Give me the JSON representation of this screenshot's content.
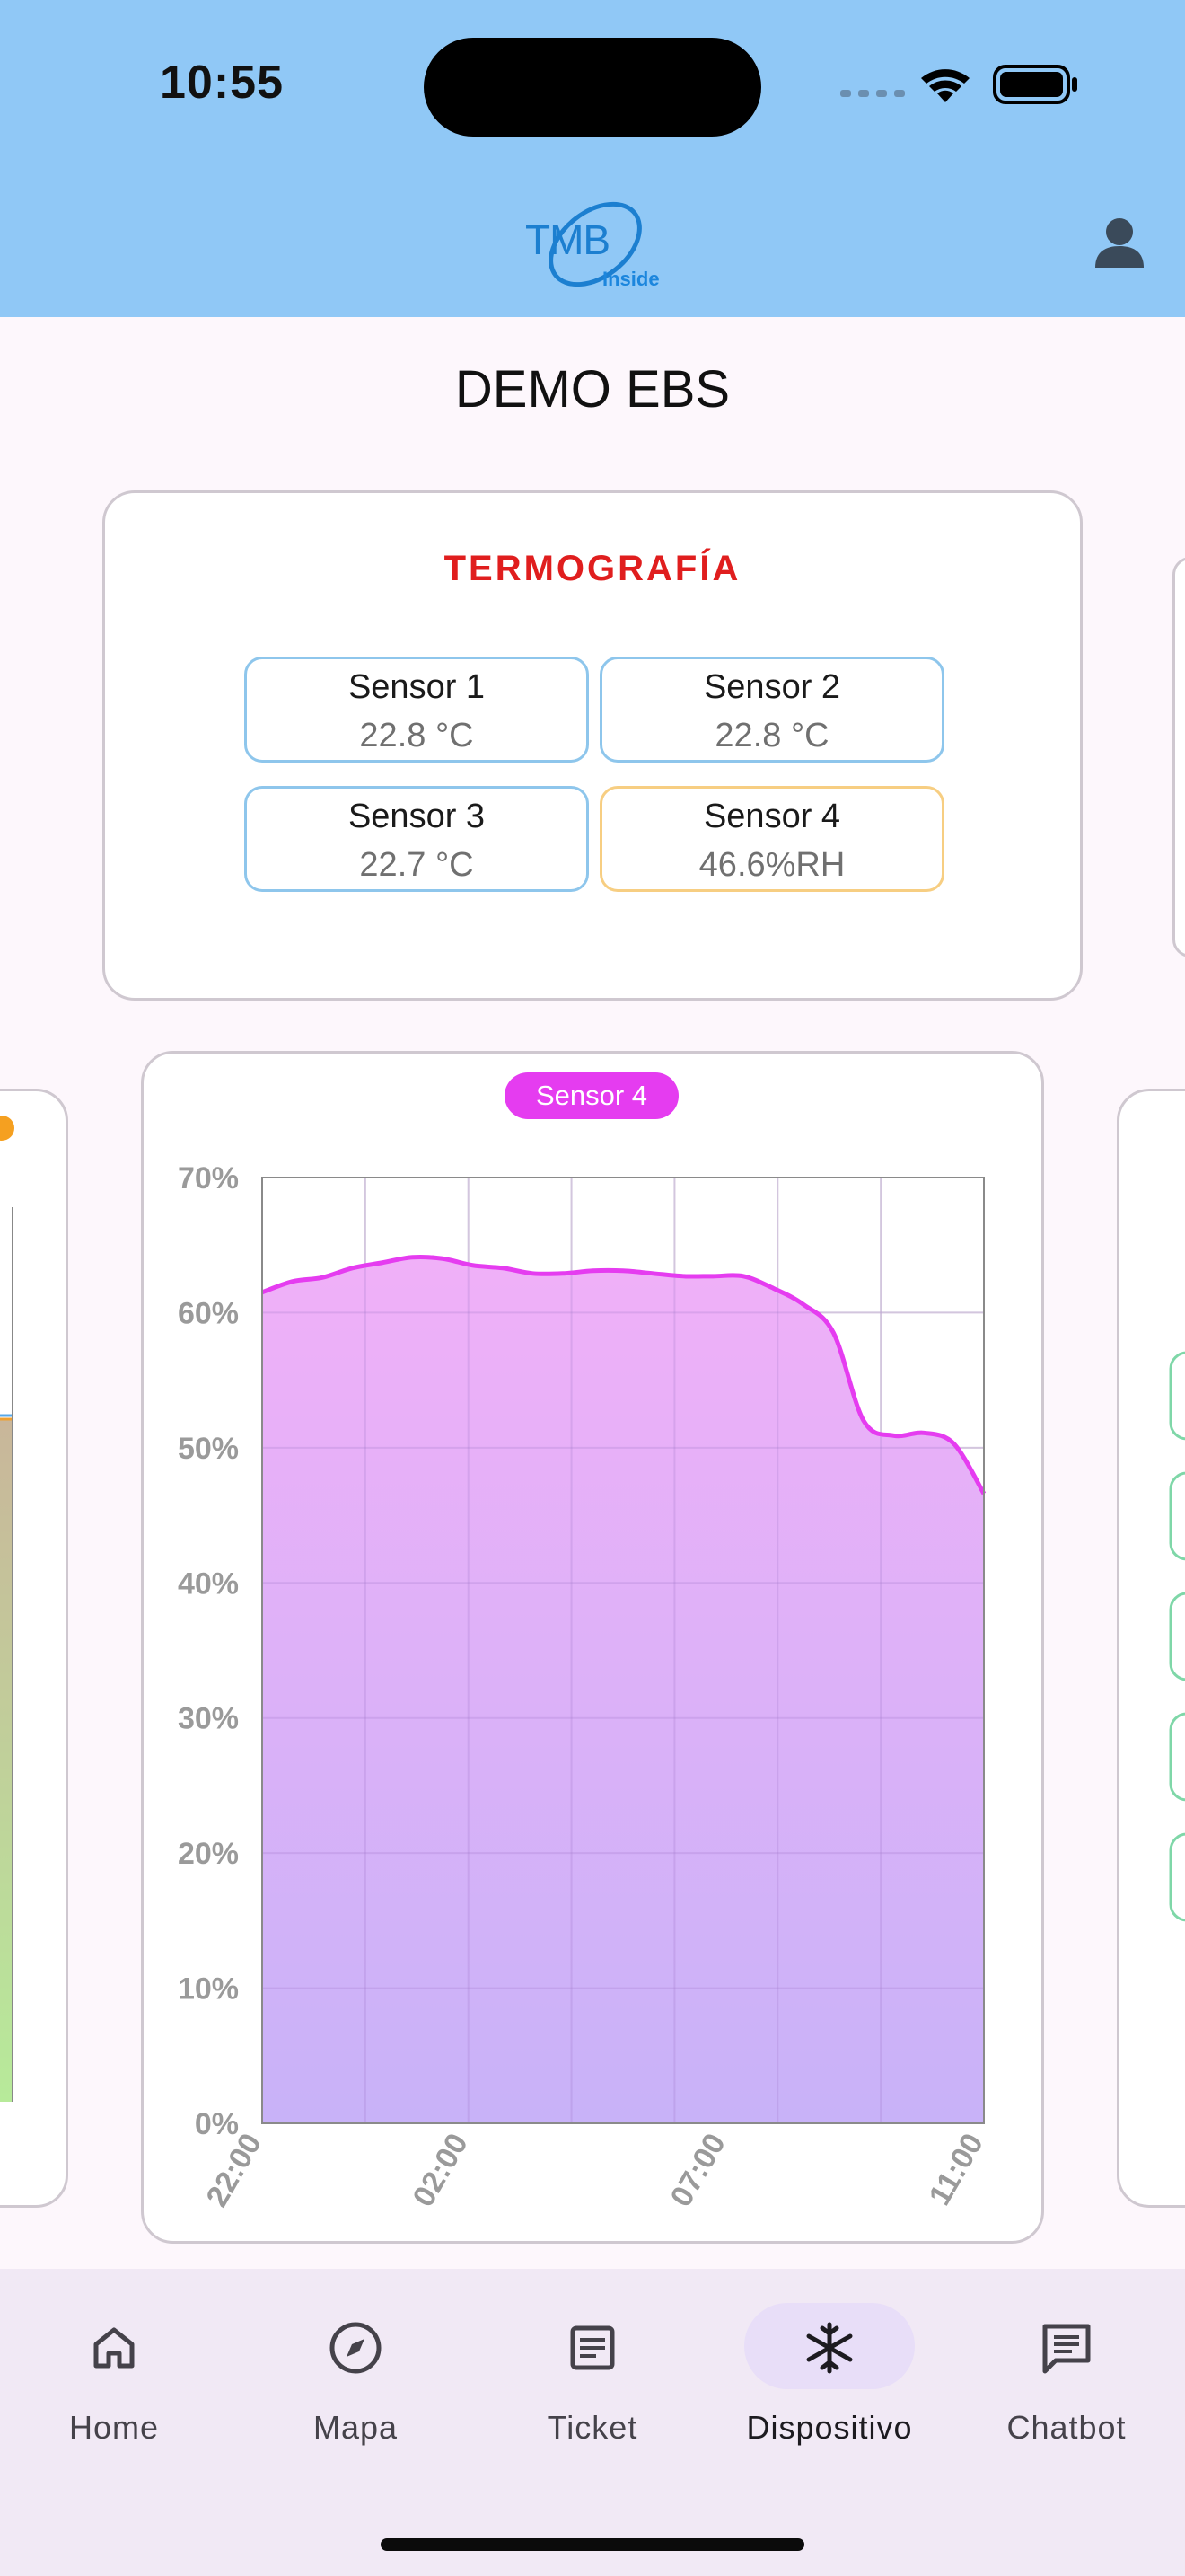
{
  "status_bar": {
    "time": "10:55"
  },
  "header": {
    "logo_text": "TMB",
    "logo_sub": "Inside"
  },
  "page_title": "DEMO EBS",
  "thermography": {
    "title": "TERMOGRAFÍA",
    "sensors": [
      {
        "name": "Sensor 1",
        "value": "22.8 °C"
      },
      {
        "name": "Sensor 2",
        "value": "22.8 °C"
      },
      {
        "name": "Sensor 3",
        "value": "22.7 °C"
      },
      {
        "name": "Sensor 4",
        "value": "46.6%RH"
      }
    ]
  },
  "colors": {
    "header": "#90c8f6",
    "series": "#e53cf0",
    "title_red": "#e01e1e"
  },
  "chart_data": {
    "type": "area",
    "legend": [
      "Sensor 4"
    ],
    "y_ticks": [
      "0%",
      "10%",
      "20%",
      "30%",
      "40%",
      "50%",
      "60%",
      "70%"
    ],
    "x_ticks": [
      "22:00",
      "02:00",
      "07:00",
      "11:00"
    ],
    "ylim": [
      0,
      70
    ],
    "grid": true,
    "series": [
      {
        "values": [
          61.5,
          62.3,
          62.6,
          63.3,
          63.7,
          64.1,
          64.0,
          63.5,
          63.3,
          62.9,
          62.9,
          63.1,
          63.1,
          62.9,
          62.7,
          62.7,
          62.7,
          61.8,
          60.6,
          58.5,
          52.0,
          50.9,
          51.1,
          50.3,
          46.6
        ]
      }
    ]
  },
  "nav": {
    "items": [
      {
        "label": "Home",
        "icon": "home-icon"
      },
      {
        "label": "Mapa",
        "icon": "compass-icon"
      },
      {
        "label": "Ticket",
        "icon": "document-icon"
      },
      {
        "label": "Dispositivo",
        "icon": "snowflake-icon"
      },
      {
        "label": "Chatbot",
        "icon": "chat-icon"
      }
    ]
  }
}
